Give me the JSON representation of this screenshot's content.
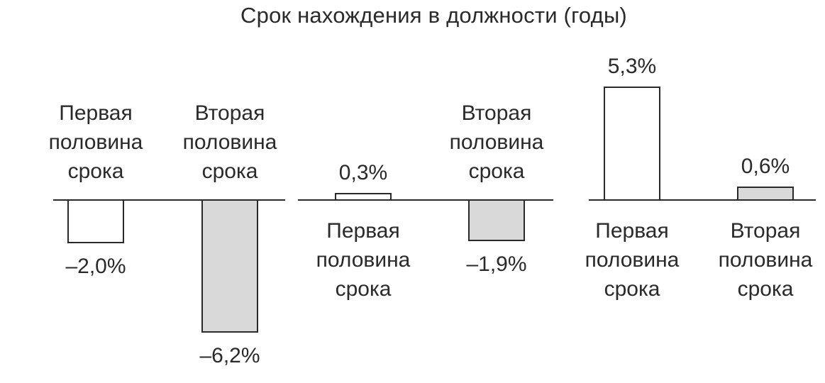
{
  "title": "Срок нахождения в должности (годы)",
  "colors": {
    "first_half_fill": "#ffffff",
    "second_half_fill": "#d9d9d9",
    "stroke": "#2a2a2a"
  },
  "chart_data": [
    {
      "type": "bar",
      "categories": [
        [
          "Первая",
          "половина",
          "срока"
        ],
        [
          "Вторая",
          "половина",
          "срока"
        ]
      ],
      "values": [
        -2.0,
        -6.2
      ],
      "value_labels": [
        "–2,0%",
        "–6,2%"
      ]
    },
    {
      "type": "bar",
      "categories": [
        [
          "Первая",
          "половина",
          "срока"
        ],
        [
          "Вторая",
          "половина",
          "срока"
        ]
      ],
      "values": [
        0.3,
        -1.9
      ],
      "value_labels": [
        "0,3%",
        "–1,9%"
      ]
    },
    {
      "type": "bar",
      "categories": [
        [
          "Первая",
          "половина",
          "срока"
        ],
        [
          "Вторая",
          "половина",
          "срока"
        ]
      ],
      "values": [
        5.3,
        0.6
      ],
      "value_labels": [
        "5,3%",
        "0,6%"
      ]
    }
  ]
}
